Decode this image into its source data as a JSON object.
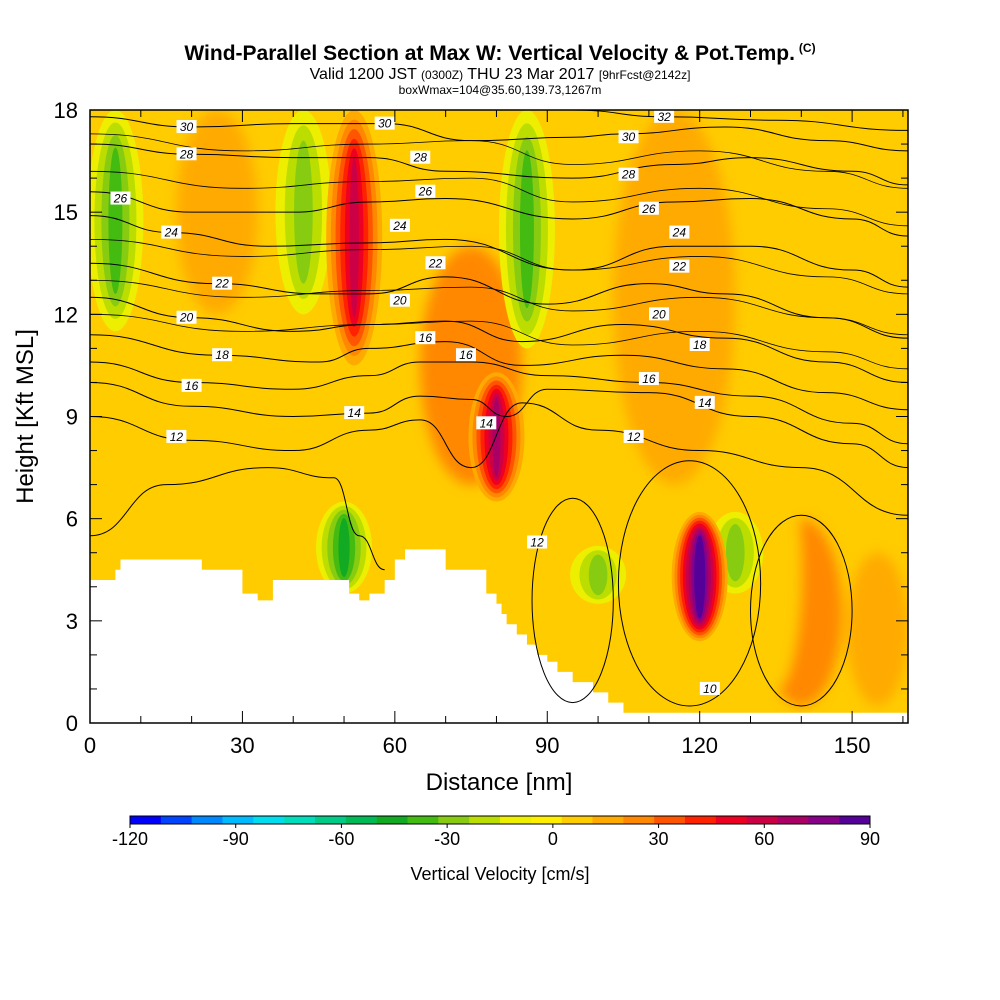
{
  "header": {
    "title": "Wind-Parallel Section at Max W: Vertical Velocity & Pot.Temp.",
    "title_mark": "(C)",
    "valid_prefix": "Valid 1200 JST",
    "valid_zulu": "(0300Z)",
    "valid_date": "THU 23 Mar 2017",
    "forecast_info": "[9hrFcst@2142z]",
    "box_info": "boxWmax=104@35.60,139.73,1267m"
  },
  "chart_data": {
    "type": "heatmap",
    "xlabel": "Distance [nm]",
    "ylabel": "Height [Kft MSL]",
    "xlim": [
      0,
      161
    ],
    "ylim": [
      0,
      18
    ],
    "x_ticks": [
      0,
      30,
      60,
      90,
      120,
      150
    ],
    "y_ticks": [
      0,
      3,
      6,
      9,
      12,
      15,
      18
    ],
    "fill_variable": "Vertical Velocity [cm/s]",
    "contour_variable": "Potential Temperature",
    "colorbar": {
      "label": "Vertical Velocity [cm/s]",
      "tick_labels": [
        "-120",
        "-90",
        "-60",
        "-30",
        "0",
        "30",
        "60",
        "90"
      ],
      "ticks": [
        -120,
        -90,
        -60,
        -30,
        0,
        30,
        60,
        90
      ],
      "range": [
        -120,
        90
      ],
      "colors": [
        "#0000ff",
        "#0044ff",
        "#0088ff",
        "#00bbff",
        "#00ddee",
        "#00ddbb",
        "#00cc88",
        "#00bb55",
        "#11aa22",
        "#44bb11",
        "#88cc11",
        "#bbdd00",
        "#eeee00",
        "#ffee00",
        "#ffcc00",
        "#ffaa00",
        "#ff8800",
        "#ff5500",
        "#ff2200",
        "#ee0022",
        "#cc0044",
        "#aa0066",
        "#880088",
        "#550099"
      ]
    },
    "updraft_cores": [
      {
        "x": 52,
        "z_bottom": 10.5,
        "z_top": 18,
        "w": 55
      },
      {
        "x": 80,
        "z_bottom": 6.5,
        "z_top": 10.3,
        "w": 65
      },
      {
        "x": 120,
        "z_bottom": 2.4,
        "z_top": 6.2,
        "w": 90
      }
    ],
    "downdraft_cores": [
      {
        "x": 5,
        "z_bottom": 11.5,
        "z_top": 18,
        "w": -35
      },
      {
        "x": 42,
        "z_bottom": 12,
        "z_top": 18,
        "w": -30
      },
      {
        "x": 50,
        "z_bottom": 3.8,
        "z_top": 6.5,
        "w": -45
      },
      {
        "x": 86,
        "z_bottom": 11,
        "z_top": 18,
        "w": -35
      },
      {
        "x": 100,
        "z_bottom": 3.5,
        "z_top": 5.2,
        "w": -25
      },
      {
        "x": 127,
        "z_bottom": 3.8,
        "z_top": 6.2,
        "w": -25
      }
    ],
    "terrain": {
      "x": [
        0,
        3,
        5,
        6,
        12,
        22,
        29,
        30,
        32,
        33,
        35,
        36,
        49,
        51,
        53,
        55,
        58,
        60,
        61,
        62,
        68,
        70,
        77,
        78,
        80,
        81,
        82,
        84,
        86,
        88,
        90,
        92,
        95,
        99,
        102,
        105,
        161
      ],
      "z": [
        4.2,
        4.2,
        4.5,
        4.8,
        4.8,
        4.5,
        4.5,
        3.8,
        3.8,
        3.6,
        3.6,
        4.2,
        4.2,
        3.8,
        3.6,
        3.8,
        4.2,
        4.8,
        4.8,
        5.1,
        5.1,
        4.5,
        4.5,
        3.8,
        3.5,
        3.2,
        2.9,
        2.6,
        2.3,
        2.0,
        1.8,
        1.5,
        1.2,
        0.9,
        0.6,
        0.3,
        0.3
      ]
    },
    "isentropes": [
      {
        "value": 10,
        "label_at": [
          122,
          1.0
        ],
        "points": [
          [
            0,
            5.5
          ],
          [
            15,
            7.0
          ],
          [
            35,
            7.5
          ],
          [
            48,
            7.2
          ],
          [
            53,
            5.5
          ],
          [
            58,
            4.5
          ]
        ]
      },
      {
        "value": 12,
        "label_at": [
          17,
          8.4
        ],
        "points": [
          [
            0,
            9.0
          ],
          [
            20,
            8.3
          ],
          [
            40,
            8.0
          ],
          [
            55,
            8.6
          ],
          [
            65,
            8.9
          ],
          [
            75,
            7.5
          ],
          [
            85,
            9.4
          ],
          [
            100,
            8.6
          ],
          [
            120,
            8.0
          ],
          [
            140,
            7.5
          ],
          [
            161,
            6.1
          ]
        ]
      },
      {
        "value": 14,
        "label_at": [
          52,
          9.1
        ],
        "points": [
          [
            0,
            10.0
          ],
          [
            20,
            9.3
          ],
          [
            40,
            9.0
          ],
          [
            55,
            9.1
          ],
          [
            65,
            9.6
          ],
          [
            75,
            9.5
          ],
          [
            82,
            9.0
          ],
          [
            90,
            9.8
          ],
          [
            110,
            9.7
          ],
          [
            130,
            9.0
          ],
          [
            150,
            8.2
          ],
          [
            161,
            7.5
          ]
        ]
      },
      {
        "value": 16,
        "label_at": [
          20,
          9.9
        ],
        "points": [
          [
            0,
            10.6
          ],
          [
            20,
            10.0
          ],
          [
            40,
            9.8
          ],
          [
            55,
            10.2
          ],
          [
            65,
            10.6
          ],
          [
            75,
            10.6
          ],
          [
            90,
            10.2
          ],
          [
            110,
            10.0
          ],
          [
            130,
            9.6
          ],
          [
            150,
            8.8
          ],
          [
            161,
            8.2
          ]
        ]
      },
      {
        "value": 18,
        "label_at": [
          26,
          10.8
        ],
        "points": [
          [
            0,
            11.4
          ],
          [
            25,
            10.8
          ],
          [
            45,
            10.6
          ],
          [
            55,
            11.0
          ],
          [
            70,
            11.2
          ],
          [
            85,
            10.5
          ],
          [
            105,
            10.8
          ],
          [
            125,
            10.4
          ],
          [
            145,
            9.7
          ],
          [
            161,
            9.2
          ]
        ]
      },
      {
        "value": 20,
        "label_at": [
          19,
          11.9
        ],
        "points": [
          [
            0,
            12.5
          ],
          [
            20,
            11.9
          ],
          [
            40,
            11.5
          ],
          [
            55,
            11.7
          ],
          [
            70,
            11.8
          ],
          [
            85,
            11.2
          ],
          [
            105,
            11.7
          ],
          [
            125,
            11.3
          ],
          [
            145,
            10.6
          ],
          [
            161,
            10.0
          ]
        ]
      },
      {
        "value": 22,
        "label_at": [
          26,
          12.9
        ],
        "points": [
          [
            0,
            13.5
          ],
          [
            25,
            12.9
          ],
          [
            45,
            12.6
          ],
          [
            55,
            12.6
          ],
          [
            70,
            13.1
          ],
          [
            90,
            12.3
          ],
          [
            110,
            12.9
          ],
          [
            125,
            12.6
          ],
          [
            145,
            11.9
          ],
          [
            161,
            11.3
          ]
        ]
      },
      {
        "value": 24,
        "label_at": [
          16,
          14.4
        ],
        "points": [
          [
            0,
            14.9
          ],
          [
            16,
            14.4
          ],
          [
            35,
            14.0
          ],
          [
            55,
            14.1
          ],
          [
            70,
            14.2
          ],
          [
            95,
            13.3
          ],
          [
            115,
            14.0
          ],
          [
            130,
            14.0
          ],
          [
            150,
            13.3
          ],
          [
            161,
            12.8
          ]
        ]
      },
      {
        "value": 26,
        "label_at": [
          6,
          15.4
        ],
        "points": [
          [
            0,
            15.6
          ],
          [
            20,
            15.0
          ],
          [
            40,
            15.0
          ],
          [
            55,
            15.3
          ],
          [
            70,
            15.4
          ],
          [
            95,
            14.8
          ],
          [
            115,
            15.3
          ],
          [
            130,
            15.4
          ],
          [
            150,
            14.8
          ],
          [
            161,
            14.3
          ]
        ]
      },
      {
        "value": 28,
        "label_at": [
          19,
          16.7
        ],
        "points": [
          [
            0,
            17.0
          ],
          [
            20,
            16.7
          ],
          [
            40,
            16.6
          ],
          [
            55,
            16.6
          ],
          [
            70,
            16.2
          ],
          [
            95,
            16.0
          ],
          [
            115,
            16.4
          ],
          [
            130,
            16.6
          ],
          [
            150,
            16.2
          ],
          [
            161,
            15.8
          ]
        ]
      },
      {
        "value": 30,
        "label_at": [
          19,
          17.5
        ],
        "points": [
          [
            0,
            17.8
          ],
          [
            20,
            17.5
          ],
          [
            40,
            17.6
          ],
          [
            58,
            17.6
          ],
          [
            75,
            17.1
          ],
          [
            95,
            17.2
          ],
          [
            105,
            17.3
          ],
          [
            125,
            17.5
          ],
          [
            145,
            17.1
          ],
          [
            161,
            16.8
          ]
        ]
      },
      {
        "value": 32,
        "label_at": [
          113,
          17.8
        ],
        "points": [
          [
            95,
            18.0
          ],
          [
            113,
            17.8
          ],
          [
            135,
            17.7
          ],
          [
            161,
            17.4
          ]
        ]
      }
    ],
    "extra_labels": [
      {
        "text": "30",
        "x": 58,
        "z": 17.6
      },
      {
        "text": "28",
        "x": 65,
        "z": 16.6
      },
      {
        "text": "26",
        "x": 66,
        "z": 15.6
      },
      {
        "text": "24",
        "x": 61,
        "z": 14.6
      },
      {
        "text": "22",
        "x": 68,
        "z": 13.5
      },
      {
        "text": "20",
        "x": 61,
        "z": 12.4
      },
      {
        "text": "16",
        "x": 66,
        "z": 11.3
      },
      {
        "text": "16",
        "x": 74,
        "z": 10.8
      },
      {
        "text": "14",
        "x": 78,
        "z": 8.8
      },
      {
        "text": "12",
        "x": 88,
        "z": 5.3
      },
      {
        "text": "30",
        "x": 106,
        "z": 17.2
      },
      {
        "text": "28",
        "x": 106,
        "z": 16.1
      },
      {
        "text": "26",
        "x": 110,
        "z": 15.1
      },
      {
        "text": "24",
        "x": 116,
        "z": 14.4
      },
      {
        "text": "22",
        "x": 116,
        "z": 13.4
      },
      {
        "text": "20",
        "x": 112,
        "z": 12.0
      },
      {
        "text": "18",
        "x": 120,
        "z": 11.1
      },
      {
        "text": "16",
        "x": 110,
        "z": 10.1
      },
      {
        "text": "14",
        "x": 121,
        "z": 9.4
      },
      {
        "text": "12",
        "x": 107,
        "z": 8.4
      }
    ]
  }
}
